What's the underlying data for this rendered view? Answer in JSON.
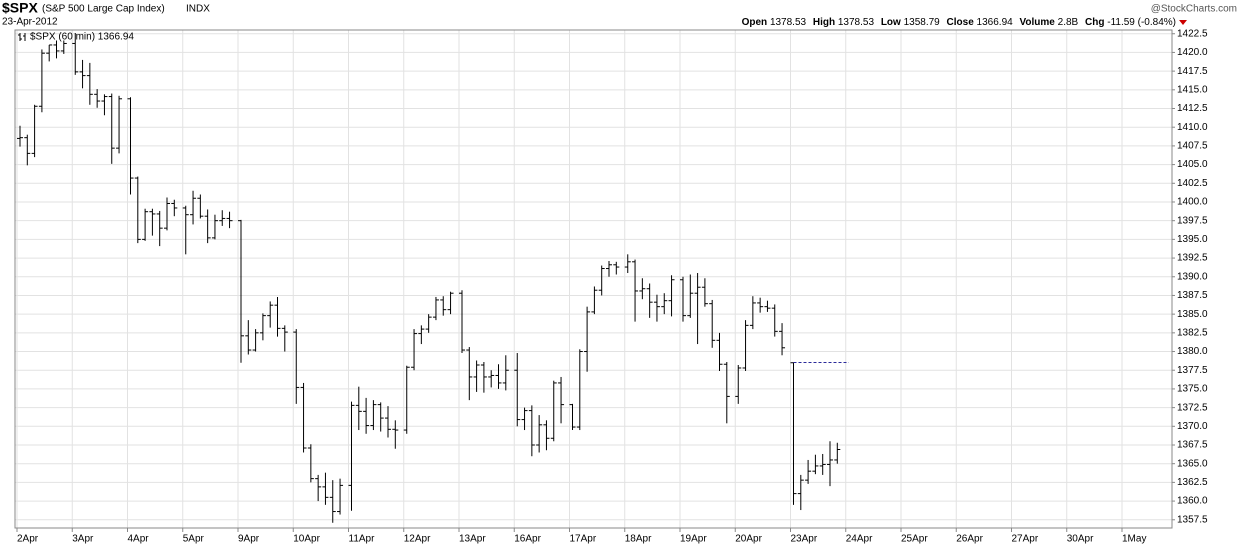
{
  "header": {
    "symbol": "$SPX",
    "name": "(S&P 500 Large Cap Index)",
    "exchange": "INDX",
    "date": "23-Apr-2012",
    "brand": "@StockCharts.com",
    "open_label": "Open",
    "open": 1378.53,
    "high_label": "High",
    "high": 1378.53,
    "low_label": "Low",
    "low": 1358.79,
    "close_label": "Close",
    "close": 1366.94,
    "volume_label": "Volume",
    "volume": "2.8B",
    "chg_label": "Chg",
    "chg": "-11.59 (-0.84%)"
  },
  "chart_data": {
    "type": "ohlc",
    "legend": "$SPX (60 min) 1366.94",
    "color": "#000000",
    "grid": true,
    "categories": [
      "2Apr",
      "3Apr",
      "4Apr",
      "5Apr",
      "9Apr",
      "10Apr",
      "11Apr",
      "12Apr",
      "13Apr",
      "16Apr",
      "17Apr",
      "18Apr",
      "19Apr",
      "20Apr",
      "23Apr",
      "24Apr",
      "25Apr",
      "26Apr",
      "27Apr",
      "30Apr",
      "1May"
    ],
    "open": [
      1408.5,
      1408.6,
      1406.5,
      1412.8,
      1419.9,
      1421.0,
      1420.2,
      1421.2,
      1417.4,
      1416.9,
      1414.4,
      1413.5,
      1414.1,
      1407.2,
      1413.8,
      1403.2,
      1395.0,
      1398.7,
      1398.4,
      1396.5,
      1399.8,
      1399.2,
      1398.3,
      1400.5,
      1398.1,
      1395.2,
      1397.5,
      1397.8,
      1397.5,
      1382.1,
      1380.2,
      1382.5,
      1384.8,
      1386.2,
      1383.1,
      1382.6,
      1375.2,
      1367.1,
      1363.0,
      1361.9,
      1360.5,
      1358.6,
      1362.1,
      1372.8,
      1372.0,
      1370.1,
      1372.9,
      1371.1,
      1369.6,
      1369.5,
      1377.9,
      1382.4,
      1383.0,
      1384.6,
      1386.9,
      1385.6,
      1387.8,
      1380.2,
      1376.6,
      1378.2,
      1376.6,
      1376.8,
      1375.8,
      1377.5,
      1370.9,
      1372.1,
      1367.5,
      1370.2,
      1368.4,
      1375.8,
      1372.9,
      1369.9,
      1380.0,
      1385.3,
      1388.2,
      1391.1,
      1391.6,
      1391.3,
      1392.0,
      1388.1,
      1388.4,
      1386.6,
      1386.0,
      1386.8,
      1389.6,
      1384.8,
      1387.8,
      1388.6,
      1386.4,
      1381.5,
      1378.3,
      1374.0,
      1377.8,
      1383.5,
      1386.5,
      1386.0,
      1385.8,
      1382.7,
      1378.5,
      1361.0,
      1362.8,
      1364.0,
      1364.7,
      1364.9,
      1365.5
    ],
    "high": [
      1410.2,
      1409.0,
      1413.0,
      1420.4,
      1421.0,
      1421.6,
      1421.6,
      1422.6,
      1419.0,
      1418.6,
      1415.1,
      1414.4,
      1414.5,
      1414.2,
      1414.0,
      1403.4,
      1399.1,
      1399.1,
      1398.8,
      1400.6,
      1400.3,
      1399.5,
      1401.5,
      1401.0,
      1399.0,
      1398.3,
      1398.9,
      1398.7,
      1397.6,
      1384.2,
      1383.0,
      1385.1,
      1386.7,
      1387.3,
      1383.5,
      1383.0,
      1375.8,
      1367.6,
      1363.5,
      1363.8,
      1362.8,
      1363.0,
      1373.3,
      1375.3,
      1373.8,
      1373.5,
      1373.2,
      1372.7,
      1370.8,
      1378.1,
      1383.0,
      1383.5,
      1385.0,
      1387.3,
      1387.4,
      1388.0,
      1388.2,
      1380.6,
      1378.8,
      1378.6,
      1377.5,
      1378.3,
      1379.5,
      1379.8,
      1372.5,
      1372.8,
      1371.5,
      1370.8,
      1376.1,
      1376.6,
      1373.0,
      1380.3,
      1386.0,
      1388.7,
      1391.5,
      1392.1,
      1392.0,
      1393.0,
      1392.3,
      1389.8,
      1389.1,
      1387.6,
      1387.8,
      1390.2,
      1390.0,
      1390.3,
      1390.5,
      1389.8,
      1386.9,
      1382.5,
      1378.6,
      1378.2,
      1384.2,
      1387.4,
      1387.2,
      1386.8,
      1386.3,
      1383.8,
      1378.5,
      1363.5,
      1365.5,
      1366.2,
      1366.3,
      1368.0,
      1367.8
    ],
    "low": [
      1407.4,
      1404.9,
      1406.0,
      1412.0,
      1418.8,
      1419.2,
      1419.8,
      1417.0,
      1415.2,
      1413.0,
      1412.6,
      1411.6,
      1405.1,
      1406.5,
      1401.0,
      1394.5,
      1394.8,
      1395.5,
      1394.1,
      1396.2,
      1398.1,
      1393.0,
      1397.0,
      1397.8,
      1394.5,
      1395.0,
      1396.8,
      1396.5,
      1378.5,
      1379.6,
      1380.0,
      1381.5,
      1383.2,
      1382.0,
      1380.0,
      1373.0,
      1366.5,
      1362.5,
      1360.0,
      1359.5,
      1357.1,
      1358.2,
      1358.7,
      1369.5,
      1369.0,
      1369.5,
      1369.3,
      1368.5,
      1367.0,
      1369.0,
      1377.5,
      1381.0,
      1382.5,
      1384.2,
      1384.8,
      1385.0,
      1379.8,
      1373.5,
      1374.6,
      1374.5,
      1375.2,
      1375.0,
      1374.8,
      1370.0,
      1369.5,
      1366.0,
      1366.5,
      1366.8,
      1368.0,
      1370.4,
      1369.5,
      1369.5,
      1377.3,
      1385.0,
      1387.5,
      1390.0,
      1390.3,
      1390.5,
      1384.0,
      1387.0,
      1384.5,
      1384.0,
      1385.0,
      1384.7,
      1384.0,
      1384.5,
      1381.0,
      1386.0,
      1380.5,
      1377.4,
      1370.4,
      1373.0,
      1377.4,
      1383.0,
      1385.2,
      1385.3,
      1382.0,
      1379.5,
      1359.5,
      1358.8,
      1362.3,
      1363.6,
      1363.5,
      1362.0,
      1365.0
    ],
    "close": [
      1408.6,
      1406.5,
      1412.8,
      1419.9,
      1421.0,
      1420.2,
      1421.2,
      1417.4,
      1416.9,
      1414.4,
      1413.5,
      1414.1,
      1407.2,
      1413.8,
      1403.2,
      1395.0,
      1398.7,
      1398.4,
      1396.5,
      1399.8,
      1399.2,
      1398.3,
      1400.5,
      1398.1,
      1395.2,
      1397.5,
      1397.8,
      1397.5,
      1382.1,
      1380.2,
      1382.5,
      1384.8,
      1386.2,
      1383.1,
      1382.6,
      1375.2,
      1367.1,
      1363.0,
      1361.9,
      1360.5,
      1358.6,
      1362.1,
      1372.8,
      1372.0,
      1370.1,
      1372.9,
      1371.1,
      1369.6,
      1369.5,
      1377.9,
      1382.4,
      1383.0,
      1384.6,
      1386.9,
      1385.6,
      1387.8,
      1380.2,
      1376.6,
      1378.2,
      1376.6,
      1376.8,
      1375.8,
      1377.5,
      1370.9,
      1372.1,
      1367.5,
      1370.2,
      1368.4,
      1375.8,
      1372.9,
      1369.9,
      1380.0,
      1385.3,
      1388.2,
      1391.1,
      1391.6,
      1391.3,
      1392.0,
      1388.1,
      1388.4,
      1386.6,
      1386.0,
      1386.8,
      1389.6,
      1384.8,
      1387.8,
      1388.6,
      1386.4,
      1381.5,
      1378.3,
      1374.0,
      1377.8,
      1383.5,
      1386.5,
      1386.0,
      1385.8,
      1382.7,
      1380.5,
      1361.0,
      1362.8,
      1364.0,
      1364.7,
      1364.9,
      1365.5,
      1366.9
    ],
    "ylim": [
      1356.4,
      1423.0
    ],
    "yticks": [
      1357.5,
      {
        "value": 1360,
        "label": "1360.0"
      },
      1362.5,
      {
        "value": 1365,
        "label": "1365.0"
      },
      1367.5,
      {
        "value": 1370,
        "label": "1370.0"
      },
      1372.5,
      {
        "value": 1375,
        "label": "1375.0"
      },
      1377.5,
      {
        "value": 1380,
        "label": "1380.0"
      },
      1382.5,
      {
        "value": 1385,
        "label": "1385.0"
      },
      1387.5,
      {
        "value": 1390,
        "label": "1390.0"
      },
      1392.5,
      {
        "value": 1395,
        "label": "1395.0"
      },
      1397.5,
      {
        "value": 1400,
        "label": "1400.0"
      },
      1402.5,
      {
        "value": 1405,
        "label": "1405.0"
      },
      1407.5,
      {
        "value": 1410,
        "label": "1410.0"
      },
      1412.5,
      {
        "value": 1415,
        "label": "1415.0"
      },
      1417.5,
      {
        "value": 1420,
        "label": "1420.0"
      },
      1422.5
    ]
  }
}
